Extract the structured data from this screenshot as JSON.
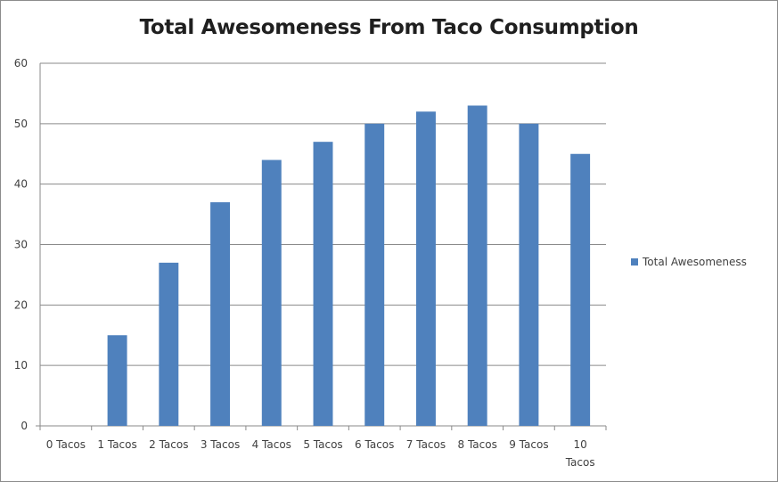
{
  "chart_data": {
    "type": "bar",
    "title": "Total Awesomeness From Taco Consumption",
    "categories": [
      "0 Tacos",
      "1 Tacos",
      "2 Tacos",
      "3 Tacos",
      "4 Tacos",
      "5 Tacos",
      "6 Tacos",
      "7 Tacos",
      "8 Tacos",
      "9 Tacos",
      "10 Tacos"
    ],
    "series": [
      {
        "name": "Total Awesomeness",
        "values": [
          0,
          15,
          27,
          37,
          44,
          47,
          50,
          52,
          53,
          50,
          45
        ],
        "color": "#4f81bd"
      }
    ],
    "ylim": [
      0,
      60
    ],
    "yticks": [
      0,
      10,
      20,
      30,
      40,
      50,
      60
    ],
    "grid": true,
    "legend_position": "right",
    "xlabel": "",
    "ylabel": ""
  }
}
